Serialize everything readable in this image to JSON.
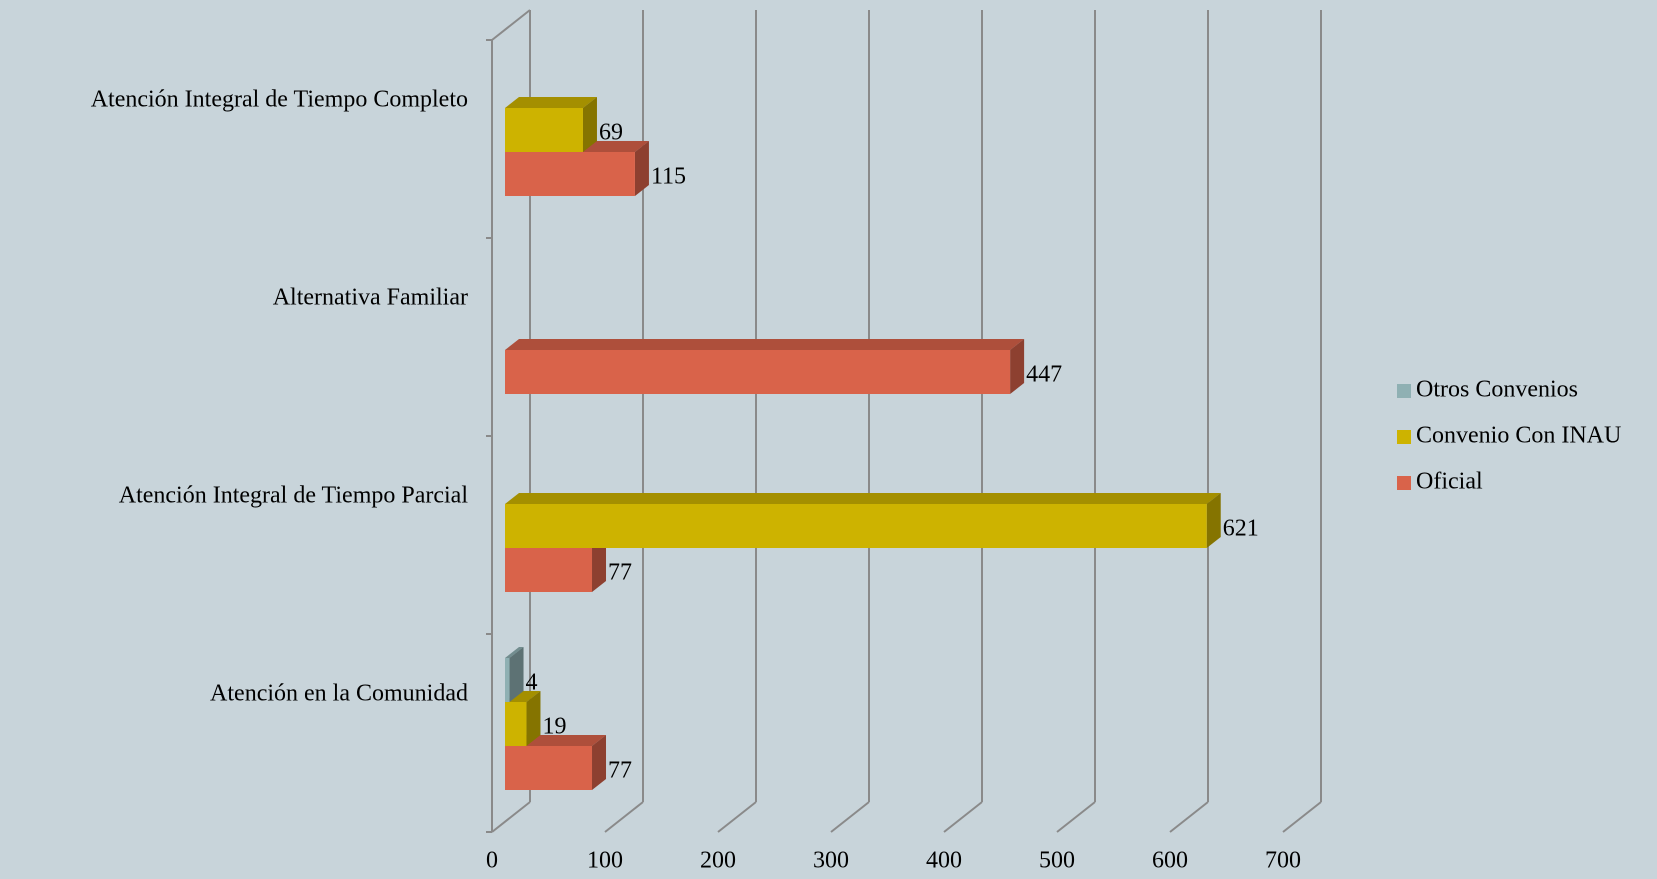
{
  "chart_data": {
    "type": "bar",
    "orientation": "horizontal",
    "three_d": true,
    "categories": [
      "Atención en la Comunidad",
      "Atención Integral de Tiempo Parcial",
      "Alternativa Familiar",
      "Atención Integral de Tiempo Completo"
    ],
    "series": [
      {
        "name": "Oficial",
        "color": "#d9634a",
        "values": [
          77,
          77,
          447,
          115
        ]
      },
      {
        "name": "Convenio Con INAU",
        "color": "#cdb300",
        "values": [
          19,
          621,
          null,
          69
        ]
      },
      {
        "name": "Otros Convenios",
        "color": "#8fb0b3",
        "values": [
          4,
          null,
          null,
          null
        ]
      }
    ],
    "xlim": [
      0,
      700
    ],
    "xticks": [
      0,
      100,
      200,
      300,
      400,
      500,
      600,
      700
    ],
    "grid": true,
    "legend": "right"
  }
}
